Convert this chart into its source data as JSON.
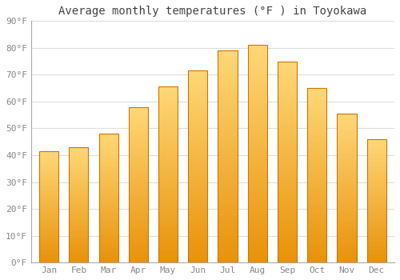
{
  "months": [
    "Jan",
    "Feb",
    "Mar",
    "Apr",
    "May",
    "Jun",
    "Jul",
    "Aug",
    "Sep",
    "Oct",
    "Nov",
    "Dec"
  ],
  "values": [
    41.5,
    43.0,
    48.0,
    58.0,
    65.5,
    71.5,
    79.0,
    81.0,
    75.0,
    65.0,
    55.5,
    46.0
  ],
  "bar_color_bottom": "#E8920A",
  "bar_color_top": "#FFD878",
  "bar_edge_color": "#CC7700",
  "title": "Average monthly temperatures (°F ) in Toyokawa",
  "ylim": [
    0,
    90
  ],
  "yticks": [
    0,
    10,
    20,
    30,
    40,
    50,
    60,
    70,
    80,
    90
  ],
  "ytick_labels": [
    "0°F",
    "10°F",
    "20°F",
    "30°F",
    "40°F",
    "50°F",
    "60°F",
    "70°F",
    "80°F",
    "90°F"
  ],
  "background_color": "#ffffff",
  "grid_color": "#dddddd",
  "title_fontsize": 10,
  "tick_fontsize": 8,
  "font_family": "monospace",
  "tick_color": "#888888",
  "title_color": "#444444"
}
